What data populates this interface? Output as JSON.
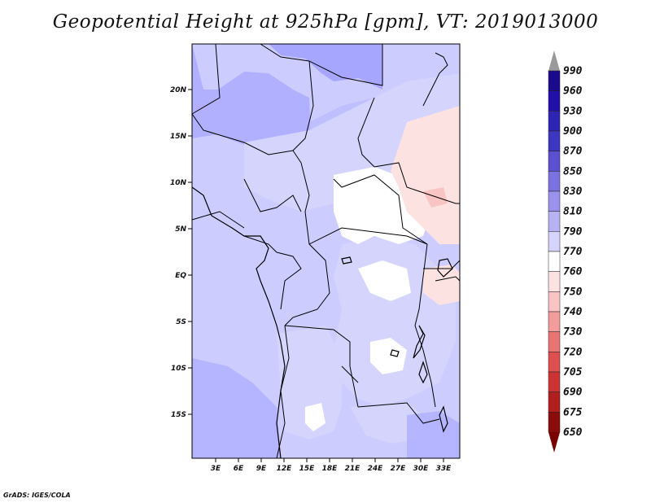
{
  "title": "Geopotential Height at 925hPa [gpm], VT: 2019013000",
  "credit": "GrADS: IGES/COLA",
  "map": {
    "lat_labels": [
      "20N",
      "15N",
      "10N",
      "5N",
      "EQ",
      "5S",
      "10S",
      "15S"
    ],
    "lon_labels": [
      "3E",
      "6E",
      "9E",
      "12E",
      "15E",
      "18E",
      "21E",
      "24E",
      "27E",
      "30E",
      "33E"
    ],
    "dominant_fill": "#ccccff",
    "coastline_color": "#000000"
  },
  "colorbar": {
    "levels": [
      "990",
      "960",
      "930",
      "900",
      "870",
      "850",
      "830",
      "810",
      "790",
      "770",
      "760",
      "750",
      "740",
      "730",
      "720",
      "705",
      "690",
      "675",
      "650"
    ],
    "colors": [
      "#9a9a9a",
      "#1a0a8c",
      "#2010a8",
      "#2e24b4",
      "#3c36c0",
      "#5a50d0",
      "#7a72e0",
      "#9a92ec",
      "#b6b2f4",
      "#d4d4fc",
      "#ffffff",
      "#fde2e2",
      "#f9c4c4",
      "#f29c9c",
      "#e87474",
      "#de5050",
      "#cc3434",
      "#b01e1e",
      "#8c0c0c",
      "#7a0000"
    ]
  }
}
